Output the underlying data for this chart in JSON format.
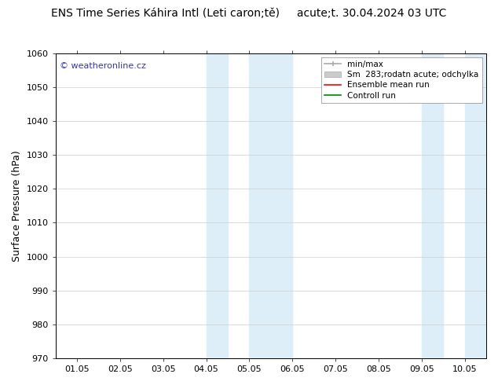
{
  "title": "ENS Time Series Káhira Intl (Leti caron;tě)     acute;t. 30.04.2024 03 UTC",
  "ylabel": "Surface Pressure (hPa)",
  "ylim": [
    970,
    1060
  ],
  "yticks": [
    970,
    980,
    990,
    1000,
    1010,
    1020,
    1030,
    1040,
    1050,
    1060
  ],
  "xtick_labels": [
    "01.05",
    "02.05",
    "03.05",
    "04.05",
    "05.05",
    "06.05",
    "07.05",
    "08.05",
    "09.05",
    "10.05"
  ],
  "xtick_positions": [
    0,
    1,
    2,
    3,
    4,
    5,
    6,
    7,
    8,
    9
  ],
  "xlim": [
    -0.5,
    9.5
  ],
  "shaded_regions": [
    {
      "x_start": 3.0,
      "x_end": 3.5
    },
    {
      "x_start": 4.0,
      "x_end": 5.0
    },
    {
      "x_start": 8.0,
      "x_end": 8.5
    },
    {
      "x_start": 9.0,
      "x_end": 9.5
    }
  ],
  "shaded_color": "#ddeef8",
  "watermark_text": "© weatheronline.cz",
  "watermark_color": "#3333bb",
  "background_color": "#ffffff",
  "grid_color": "#cccccc",
  "title_fontsize": 10,
  "tick_fontsize": 8,
  "ylabel_fontsize": 9,
  "legend_fontsize": 7.5
}
